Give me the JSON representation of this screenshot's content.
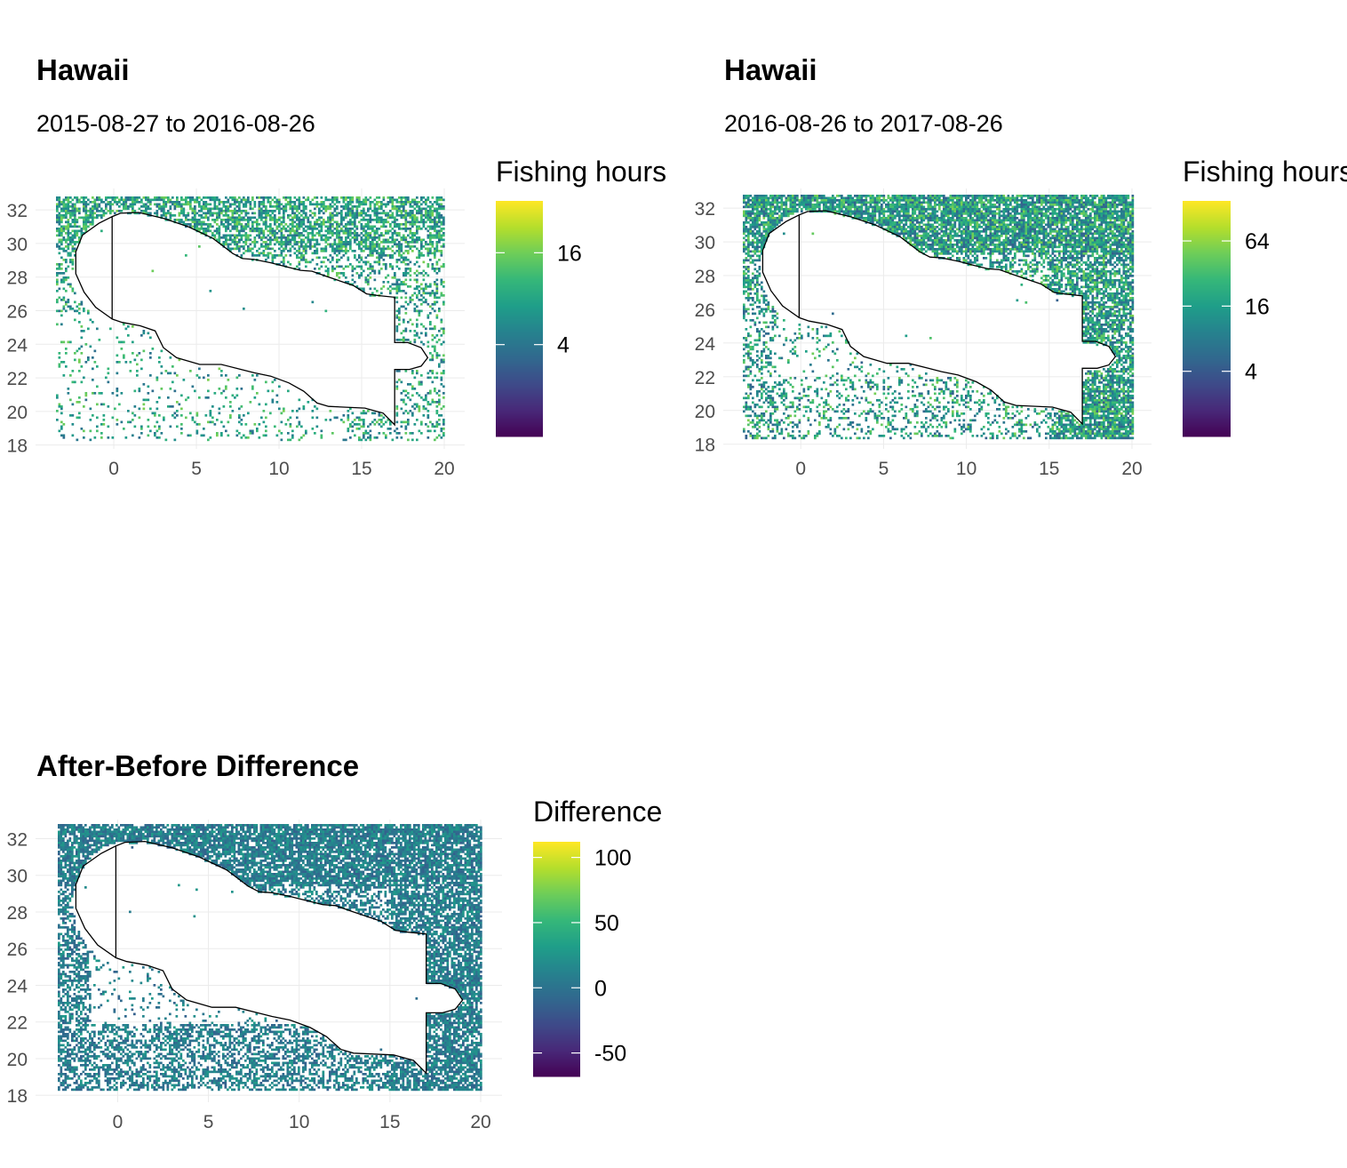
{
  "chart_data": [
    {
      "type": "heatmap",
      "title": "Hawaii",
      "subtitle": "2015-08-27 to 2016-08-26",
      "legend_title": "Fishing hours",
      "legend_ticks": [
        "4",
        "16"
      ],
      "legend_tick_values": [
        4,
        16
      ],
      "color_scale": "viridis",
      "scale": "log",
      "legend_max": 35,
      "xlim": [
        -3.5,
        20
      ],
      "ylim": [
        18.3,
        32.8
      ],
      "x_ticks": [
        0,
        5,
        10,
        15,
        20
      ],
      "y_ticks": [
        18,
        20,
        22,
        24,
        26,
        28,
        30,
        32
      ],
      "grid": true,
      "legend_position": "right",
      "boundary": "EEZ outline"
    },
    {
      "type": "heatmap",
      "title": "Hawaii",
      "subtitle": "2016-08-26 to 2017-08-26",
      "legend_title": "Fishing hours",
      "legend_ticks": [
        "4",
        "16",
        "64"
      ],
      "legend_tick_values": [
        4,
        16,
        64
      ],
      "color_scale": "viridis",
      "scale": "log",
      "legend_max": 150,
      "xlim": [
        -3.5,
        20
      ],
      "ylim": [
        18.3,
        32.8
      ],
      "x_ticks": [
        0,
        5,
        10,
        15,
        20
      ],
      "y_ticks": [
        18,
        20,
        22,
        24,
        26,
        28,
        30,
        32
      ],
      "grid": true,
      "legend_position": "right",
      "boundary": "EEZ outline"
    },
    {
      "type": "heatmap",
      "title": "After-Before Difference",
      "subtitle": "",
      "legend_title": "Difference",
      "legend_ticks": [
        "-50",
        "0",
        "50",
        "100"
      ],
      "legend_tick_values": [
        -50,
        0,
        50,
        100
      ],
      "color_scale": "viridis",
      "scale": "linear",
      "legend_min": -68,
      "legend_max": 112,
      "xlim": [
        -3.3,
        20
      ],
      "ylim": [
        18.3,
        32.8
      ],
      "x_ticks": [
        0,
        5,
        10,
        15,
        20
      ],
      "y_ticks": [
        18,
        20,
        22,
        24,
        26,
        28,
        30,
        32
      ],
      "grid": true,
      "legend_position": "right",
      "boundary": "EEZ outline"
    }
  ]
}
